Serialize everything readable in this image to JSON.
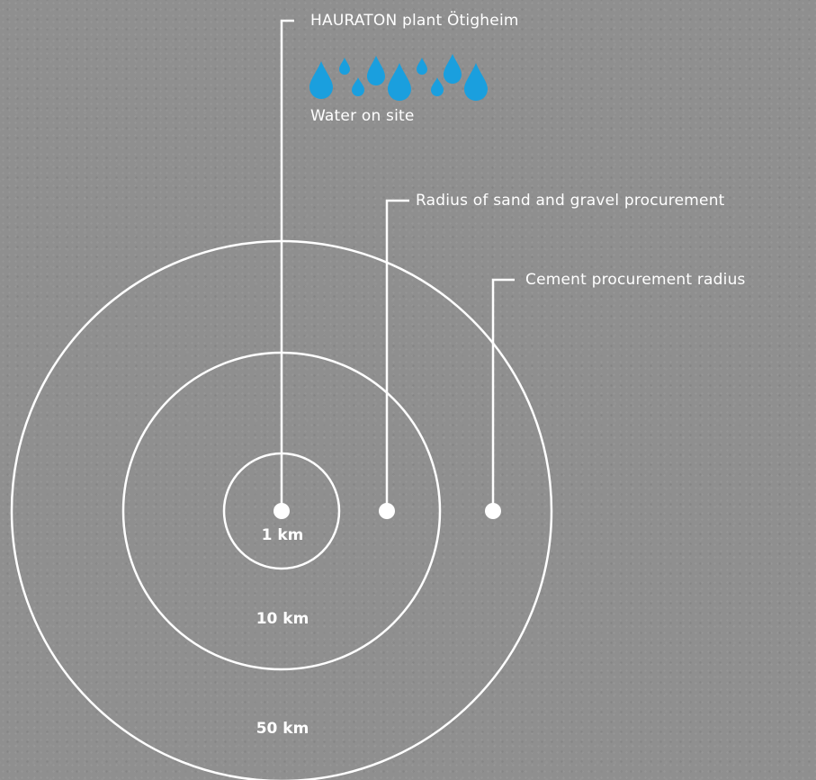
{
  "labels": {
    "plant": "HAURATON plant Ötigheim",
    "water": "Water on site",
    "sand_gravel": "Radius of sand and gravel procurement",
    "cement": "Cement procurement radius"
  },
  "radii": {
    "r1": "1 km",
    "r10": "10 km",
    "r50": "50 km"
  },
  "icons": {
    "water_drops": "water-drop-icon"
  },
  "colors": {
    "lines": "#ffffff",
    "water_drops": "#1a9fde",
    "background": "#8f8f8f"
  }
}
